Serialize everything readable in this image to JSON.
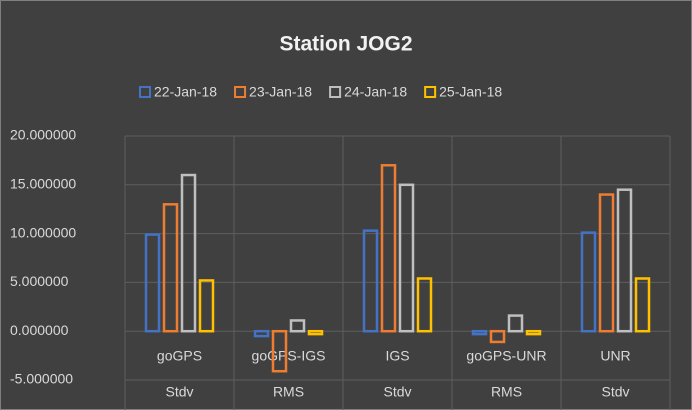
{
  "chart_data": {
    "type": "bar",
    "title": "Station JOG2",
    "categories": [
      "goGPS",
      "goGPS-IGS",
      "IGS",
      "goGPS-UNR",
      "UNR"
    ],
    "subcategories": [
      "Stdv",
      "RMS",
      "Stdv",
      "RMS",
      "Stdv"
    ],
    "series": [
      {
        "name": "22-Jan-18",
        "color": "#4472c4",
        "values": [
          9.9,
          -0.5,
          10.3,
          -0.3,
          10.1
        ]
      },
      {
        "name": "23-Jan-18",
        "color": "#ed7d31",
        "values": [
          13,
          -4.1,
          17,
          -1.1,
          14
        ]
      },
      {
        "name": "24-Jan-18",
        "color": "#bfbfbf",
        "values": [
          16,
          1.1,
          15,
          1.6,
          14.5
        ]
      },
      {
        "name": "25-Jan-18",
        "color": "#ffc000",
        "values": [
          5.2,
          -0.3,
          5.4,
          -0.3,
          5.4
        ]
      }
    ],
    "ylim": [
      -5,
      20
    ],
    "yticks": [
      {
        "value": -5,
        "label": "-5.000000"
      },
      {
        "value": 0,
        "label": "0.000000"
      },
      {
        "value": 5,
        "label": "5.000000"
      },
      {
        "value": 10,
        "label": "10.000000"
      },
      {
        "value": 15,
        "label": "15.000000"
      },
      {
        "value": 20,
        "label": "20.000000"
      }
    ],
    "grid": true,
    "legend": "top"
  }
}
